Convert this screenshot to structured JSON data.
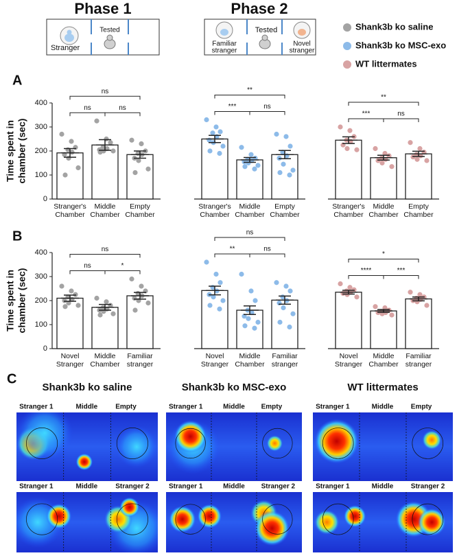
{
  "header": {
    "phase1": {
      "title": "Phase 1",
      "tested": "Tested",
      "stranger": "Stranger"
    },
    "phase2": {
      "title": "Phase 2",
      "tested": "Tested",
      "familiar": [
        "Familiar",
        "stranger"
      ],
      "novel": [
        "Novel",
        "stranger"
      ]
    }
  },
  "legend": [
    {
      "name": "Shank3b ko saline",
      "color": "#a3a3a3"
    },
    {
      "name": "Shank3b ko MSC-exo",
      "color": "#8dbbe9"
    },
    {
      "name": "WT littermates",
      "color": "#d8a3a3"
    }
  ],
  "panels": [
    "A",
    "B",
    "C"
  ],
  "chart_data": [
    {
      "type": "bar",
      "ylabel": [
        "Time spent in",
        "chamber (sec)"
      ],
      "categories": [
        [
          "Stranger's",
          "Chamber"
        ],
        [
          "Middle",
          "Chamber"
        ],
        [
          "Empty",
          "Chamber"
        ]
      ],
      "values": [
        192,
        225,
        185
      ],
      "errors": [
        18,
        22,
        15
      ],
      "color": "#a3a3a3",
      "points": [
        [
          270,
          240,
          215,
          205,
          195,
          185,
          170,
          130,
          100
        ],
        [
          325,
          250,
          235,
          215,
          210,
          205,
          200,
          200,
          195
        ],
        [
          245,
          230,
          200,
          190,
          185,
          170,
          160,
          125,
          110
        ]
      ],
      "ylim": [
        0,
        400
      ],
      "yticks": [
        0,
        100,
        200,
        300,
        400
      ],
      "significance": [
        {
          "pair": [
            0,
            1
          ],
          "label": "ns"
        },
        {
          "pair": [
            1,
            2
          ],
          "label": "ns"
        },
        {
          "pair": [
            0,
            2
          ],
          "label": "ns"
        }
      ]
    },
    {
      "type": "bar",
      "categories": [
        [
          "Stranger's",
          "Chamber"
        ],
        [
          "Middle",
          "Chamber"
        ],
        [
          "Empty",
          "Chamber"
        ]
      ],
      "values": [
        250,
        163,
        185
      ],
      "errors": [
        15,
        10,
        17
      ],
      "color": "#8dbbe9",
      "points": [
        [
          330,
          300,
          280,
          275,
          260,
          245,
          235,
          220,
          200,
          190
        ],
        [
          215,
          185,
          170,
          165,
          160,
          155,
          150,
          140,
          135,
          125
        ],
        [
          270,
          260,
          220,
          195,
          180,
          170,
          145,
          120,
          110,
          100
        ]
      ],
      "ylim": [
        0,
        400
      ],
      "significance": [
        {
          "pair": [
            0,
            1
          ],
          "label": "***"
        },
        {
          "pair": [
            1,
            2
          ],
          "label": "ns"
        },
        {
          "pair": [
            0,
            2
          ],
          "label": "**"
        }
      ]
    },
    {
      "type": "bar",
      "categories": [
        [
          "Stranger's",
          "Chamber"
        ],
        [
          "Middle",
          "Chamber"
        ],
        [
          "Empty",
          "Chamber"
        ]
      ],
      "values": [
        245,
        172,
        188
      ],
      "errors": [
        14,
        10,
        11
      ],
      "color": "#d8a3a3",
      "points": [
        [
          300,
          285,
          260,
          245,
          240,
          225,
          210,
          205
        ],
        [
          210,
          190,
          180,
          170,
          165,
          160,
          150,
          135
        ],
        [
          235,
          210,
          195,
          185,
          180,
          175,
          165,
          160
        ]
      ],
      "ylim": [
        0,
        400
      ],
      "significance": [
        {
          "pair": [
            0,
            1
          ],
          "label": "***"
        },
        {
          "pair": [
            1,
            2
          ],
          "label": "ns"
        },
        {
          "pair": [
            0,
            2
          ],
          "label": "**"
        }
      ]
    },
    {
      "type": "bar",
      "ylabel": [
        "Time spent in",
        "chamber (sec)"
      ],
      "categories": [
        [
          "Novel",
          "Stranger"
        ],
        [
          "Middle",
          "Chamber"
        ],
        [
          "Familiar",
          "stranger"
        ]
      ],
      "values": [
        210,
        172,
        220
      ],
      "errors": [
        13,
        12,
        14
      ],
      "color": "#a3a3a3",
      "points": [
        [
          260,
          240,
          225,
          215,
          205,
          200,
          190,
          180,
          175
        ],
        [
          210,
          195,
          180,
          170,
          165,
          160,
          155,
          145,
          140
        ],
        [
          290,
          260,
          240,
          230,
          220,
          210,
          200,
          190,
          160
        ]
      ],
      "ylim": [
        0,
        400
      ],
      "yticks": [
        0,
        100,
        200,
        300,
        400
      ],
      "significance": [
        {
          "pair": [
            0,
            1
          ],
          "label": "ns"
        },
        {
          "pair": [
            1,
            2
          ],
          "label": "*"
        },
        {
          "pair": [
            0,
            2
          ],
          "label": "ns"
        }
      ]
    },
    {
      "type": "bar",
      "categories": [
        [
          "Novel",
          "Stranger"
        ],
        [
          "Middle",
          "Chamber"
        ],
        [
          "Familiar",
          "stranger"
        ]
      ],
      "values": [
        242,
        160,
        202
      ],
      "errors": [
        18,
        18,
        17
      ],
      "color": "#8dbbe9",
      "points": [
        [
          360,
          310,
          275,
          255,
          240,
          225,
          215,
          200,
          180,
          165
        ],
        [
          310,
          240,
          200,
          160,
          150,
          135,
          125,
          110,
          95,
          85
        ],
        [
          275,
          260,
          240,
          215,
          200,
          190,
          170,
          145,
          110,
          90
        ]
      ],
      "ylim": [
        0,
        400
      ],
      "significance": [
        {
          "pair": [
            0,
            1
          ],
          "label": "**"
        },
        {
          "pair": [
            1,
            2
          ],
          "label": "ns"
        },
        {
          "pair": [
            0,
            2
          ],
          "label": "ns"
        }
      ]
    },
    {
      "type": "bar",
      "categories": [
        [
          "Novel",
          "Stranger"
        ],
        [
          "Middle",
          "Chamber"
        ],
        [
          "Familiar",
          "stranger"
        ]
      ],
      "values": [
        235,
        157,
        207
      ],
      "errors": [
        8,
        6,
        8
      ],
      "color": "#d8a3a3",
      "points": [
        [
          270,
          255,
          245,
          240,
          235,
          230,
          225,
          215
        ],
        [
          175,
          170,
          160,
          155,
          150,
          150,
          145,
          140
        ],
        [
          235,
          225,
          215,
          210,
          205,
          200,
          195,
          180
        ]
      ],
      "ylim": [
        0,
        400
      ],
      "significance": [
        {
          "pair": [
            0,
            1
          ],
          "label": "****"
        },
        {
          "pair": [
            1,
            2
          ],
          "label": "***"
        },
        {
          "pair": [
            0,
            2
          ],
          "label": "*"
        }
      ]
    }
  ],
  "heatmaps": {
    "groups": [
      "Shank3b ko saline",
      "Shank3b ko MSC-exo",
      "WT littermates"
    ],
    "rows": [
      [
        "Stranger 1",
        "Middle",
        "Empty"
      ],
      [
        "Stranger 1",
        "Middle",
        "Stranger 2"
      ]
    ]
  }
}
